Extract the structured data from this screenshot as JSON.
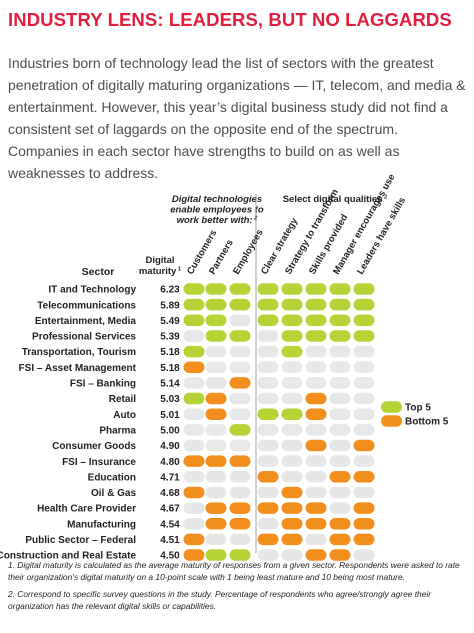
{
  "title": "INDUSTRY LENS: LEADERS, BUT NO LAGGARDS",
  "intro": "Industries born of technology lead the list of sectors with the greatest penetration of digitally maturing organizations — IT, telecom, and media & entertainment. However, this year’s digital business study did not find a consistent set of laggards on the opposite end of the spectrum. Companies in each sector have strengths to build on as well as weaknesses to address.",
  "footnotes": [
    "1. Digital maturity is calculated as the average maturity of responses from a given sector. Respondents were asked to rate their organization’s digital maturity on a 10-point scale with 1 being least mature and 10 being most mature.",
    "2. Correspond to specific survey questions in the study. Percentage of respondents who agree/strongly agree their organization has the relevant digital skills or capabilities."
  ],
  "colors": {
    "top": "#b5d334",
    "bottom": "#f28e1e",
    "neutral": "#e6e7e8",
    "title": "#e31d3c"
  },
  "chart_data": {
    "type": "table",
    "group_headers": [
      {
        "text": [
          "Digital technologies",
          "enable employees to",
          "work better with:"
        ],
        "footnote": "2"
      },
      {
        "text": [
          "Select digital qualities"
        ],
        "footnote": "2"
      }
    ],
    "sector_header": "Sector",
    "maturity_header": [
      "Digital",
      "maturity"
    ],
    "maturity_footnote": "1",
    "columns": [
      "Customers",
      "Partners",
      "Employees",
      "Clear strategy",
      "Strategy to transform",
      "Skills provided",
      "Manager encourages use",
      "Leaders have skills"
    ],
    "legend": [
      {
        "label": "Top 5",
        "value": "T"
      },
      {
        "label": "Bottom 5",
        "value": "B"
      }
    ],
    "rows": [
      {
        "sector": "IT and Technology",
        "maturity": "6.23",
        "cells": [
          "T",
          "T",
          "T",
          "T",
          "T",
          "T",
          "T",
          "T"
        ]
      },
      {
        "sector": "Telecommunications",
        "maturity": "5.89",
        "cells": [
          "T",
          "T",
          "T",
          "T",
          "T",
          "T",
          "T",
          "T"
        ]
      },
      {
        "sector": "Entertainment, Media",
        "maturity": "5.49",
        "cells": [
          "T",
          "T",
          "N",
          "T",
          "T",
          "T",
          "T",
          "T"
        ]
      },
      {
        "sector": "Professional Services",
        "maturity": "5.39",
        "cells": [
          "N",
          "T",
          "T",
          "N",
          "T",
          "T",
          "T",
          "T"
        ]
      },
      {
        "sector": "Transportation, Tourism",
        "maturity": "5.18",
        "cells": [
          "T",
          "N",
          "N",
          "N",
          "T",
          "N",
          "N",
          "N"
        ]
      },
      {
        "sector": "FSI – Asset Management",
        "maturity": "5.18",
        "cells": [
          "B",
          "N",
          "N",
          "N",
          "N",
          "N",
          "N",
          "N"
        ]
      },
      {
        "sector": "FSI – Banking",
        "maturity": "5.14",
        "cells": [
          "N",
          "N",
          "B",
          "N",
          "N",
          "N",
          "N",
          "N"
        ]
      },
      {
        "sector": "Retail",
        "maturity": "5.03",
        "cells": [
          "T",
          "B",
          "N",
          "N",
          "N",
          "B",
          "N",
          "N"
        ]
      },
      {
        "sector": "Auto",
        "maturity": "5.01",
        "cells": [
          "N",
          "B",
          "N",
          "T",
          "T",
          "B",
          "N",
          "N"
        ]
      },
      {
        "sector": "Pharma",
        "maturity": "5.00",
        "cells": [
          "N",
          "N",
          "T",
          "N",
          "N",
          "N",
          "N",
          "N"
        ]
      },
      {
        "sector": "Consumer Goods",
        "maturity": "4.90",
        "cells": [
          "N",
          "N",
          "N",
          "N",
          "N",
          "B",
          "N",
          "B"
        ]
      },
      {
        "sector": "FSI – Insurance",
        "maturity": "4.80",
        "cells": [
          "B",
          "B",
          "B",
          "N",
          "N",
          "N",
          "N",
          "N"
        ]
      },
      {
        "sector": "Education",
        "maturity": "4.71",
        "cells": [
          "N",
          "N",
          "N",
          "B",
          "N",
          "N",
          "B",
          "B"
        ]
      },
      {
        "sector": "Oil & Gas",
        "maturity": "4.68",
        "cells": [
          "B",
          "N",
          "N",
          "N",
          "B",
          "N",
          "N",
          "N"
        ]
      },
      {
        "sector": "Health Care Provider",
        "maturity": "4.67",
        "cells": [
          "N",
          "B",
          "B",
          "B",
          "B",
          "B",
          "N",
          "B"
        ]
      },
      {
        "sector": "Manufacturing",
        "maturity": "4.54",
        "cells": [
          "N",
          "B",
          "B",
          "N",
          "B",
          "B",
          "B",
          "B"
        ]
      },
      {
        "sector": "Public Sector – Federal",
        "maturity": "4.51",
        "cells": [
          "B",
          "N",
          "N",
          "B",
          "B",
          "N",
          "B",
          "B"
        ]
      },
      {
        "sector": "Construction and Real Estate",
        "maturity": "4.50",
        "cells": [
          "B",
          "T",
          "T",
          "N",
          "N",
          "B",
          "B",
          "N"
        ]
      }
    ]
  }
}
